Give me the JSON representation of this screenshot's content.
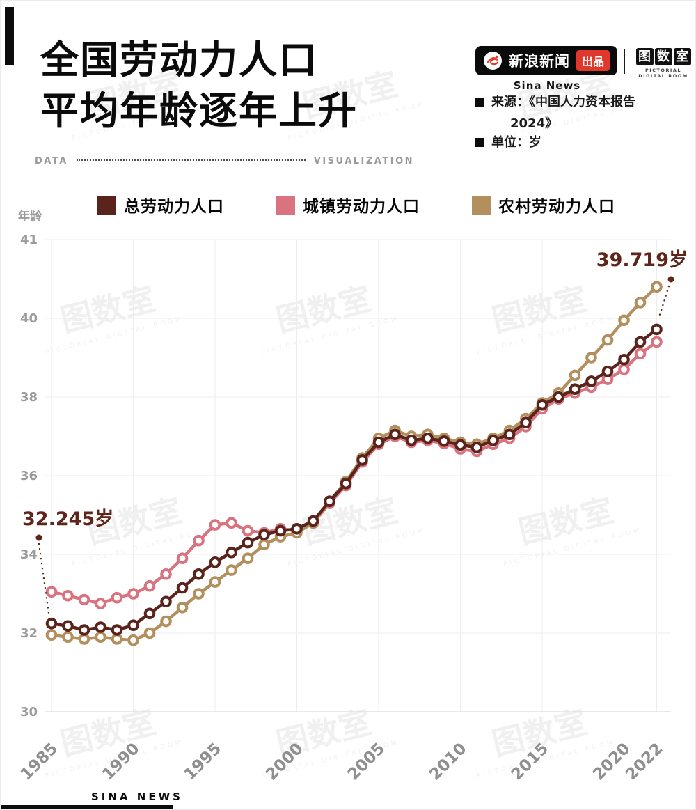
{
  "page": {
    "title_line1": "全国劳动力人口",
    "title_line2": "平均年龄逐年上升",
    "divider_left": "DATA",
    "divider_right": "VISUALIZATION",
    "footer_brand": "SINA NEWS"
  },
  "header": {
    "brand_name": "新浪新闻",
    "badge": "出品",
    "brand_sub": "Sina News",
    "studio_chars": [
      "图",
      "数",
      "室"
    ],
    "studio_sub": "PICTORIAL DIGITAL ROOM",
    "source_line1": "来源：《中国人力资本报告",
    "source_line2": "2024》",
    "unit_label": "单位：岁"
  },
  "watermark": {
    "text": "图数室",
    "sub": "PICTORIAL DIGITAL ROOM"
  },
  "chart_data": {
    "type": "line",
    "title": "全国劳动力人口平均年龄逐年上升",
    "ylabel": "年龄",
    "unit": "岁",
    "ylim": [
      30,
      41
    ],
    "grid": true,
    "legend_position": "top",
    "x": [
      1985,
      1986,
      1987,
      1988,
      1989,
      1990,
      1991,
      1992,
      1993,
      1994,
      1995,
      1996,
      1997,
      1998,
      1999,
      2000,
      2001,
      2002,
      2003,
      2004,
      2005,
      2006,
      2007,
      2008,
      2009,
      2010,
      2011,
      2012,
      2013,
      2014,
      2015,
      2016,
      2017,
      2018,
      2019,
      2020,
      2021,
      2022
    ],
    "x_ticks": [
      1985,
      1990,
      1995,
      2000,
      2005,
      2010,
      2015,
      2020,
      2022
    ],
    "y_ticks": [
      41,
      40,
      38,
      36,
      34,
      32,
      30
    ],
    "series": [
      {
        "key": "total",
        "name": "总劳动力人口",
        "color": "#5a241d",
        "values": [
          32.245,
          32.18,
          32.08,
          32.15,
          32.08,
          32.2,
          32.5,
          32.8,
          33.15,
          33.5,
          33.8,
          34.05,
          34.3,
          34.5,
          34.6,
          34.65,
          34.85,
          35.35,
          35.8,
          36.4,
          36.85,
          37.05,
          36.9,
          36.95,
          36.88,
          36.78,
          36.72,
          36.9,
          37.05,
          37.35,
          37.8,
          38.0,
          38.2,
          38.4,
          38.65,
          38.95,
          39.4,
          39.719
        ]
      },
      {
        "key": "urban",
        "name": "城镇劳动力人口",
        "color": "#d8737f",
        "values": [
          33.05,
          32.95,
          32.85,
          32.75,
          32.9,
          33.0,
          33.2,
          33.5,
          33.9,
          34.35,
          34.75,
          34.8,
          34.6,
          34.55,
          34.65,
          34.6,
          34.8,
          35.3,
          35.75,
          36.35,
          36.8,
          37.0,
          36.85,
          36.9,
          36.82,
          36.68,
          36.62,
          36.8,
          36.95,
          37.25,
          37.7,
          37.95,
          38.1,
          38.25,
          38.45,
          38.7,
          39.1,
          39.4
        ]
      },
      {
        "key": "rural",
        "name": "农村劳动力人口",
        "color": "#b28f5c",
        "values": [
          31.95,
          31.9,
          31.85,
          31.9,
          31.85,
          31.82,
          32.0,
          32.3,
          32.65,
          33.0,
          33.3,
          33.6,
          33.9,
          34.25,
          34.45,
          34.55,
          34.8,
          35.35,
          35.85,
          36.45,
          36.95,
          37.15,
          37.0,
          37.05,
          36.95,
          36.85,
          36.8,
          36.95,
          37.15,
          37.45,
          37.85,
          38.1,
          38.55,
          39.0,
          39.45,
          39.95,
          40.2,
          40.4
        ]
      }
    ],
    "annotations": [
      {
        "text": "32.245岁",
        "year": 1985,
        "value": 32.245,
        "series": "总劳动力人口"
      },
      {
        "text": "39.719岁",
        "year": 2022,
        "value": 39.719,
        "series": "总劳动力人口"
      }
    ]
  }
}
